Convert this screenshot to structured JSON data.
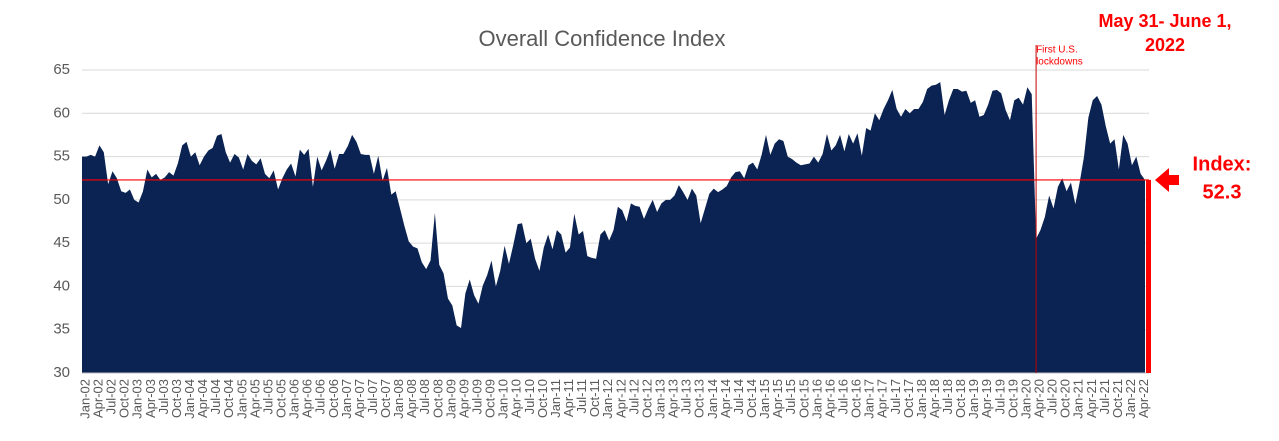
{
  "chart_data": {
    "type": "area",
    "title": "Overall Confidence Index",
    "color": "#0b2352",
    "grid": true,
    "ylim": [
      30,
      65
    ],
    "yticks": [
      30,
      35,
      40,
      45,
      50,
      55,
      60,
      65
    ],
    "categories": [
      "Jan-02",
      null,
      null,
      "Apr-02",
      null,
      null,
      "Jul-02",
      null,
      null,
      "Oct-02",
      null,
      null,
      "Jan-03",
      null,
      null,
      "Apr-03",
      null,
      null,
      "Jul-03",
      null,
      null,
      "Oct-03",
      null,
      null,
      "Jan-04",
      null,
      null,
      "Apr-04",
      null,
      null,
      "Jul-04",
      null,
      null,
      "Oct-04",
      null,
      null,
      "Jan-05",
      null,
      null,
      "Apr-05",
      null,
      null,
      "Jul-05",
      null,
      null,
      "Oct-05",
      null,
      null,
      "Jan-06",
      null,
      null,
      "Apr-06",
      null,
      null,
      "Jul-06",
      null,
      null,
      "Oct-06",
      null,
      null,
      "Jan-07",
      null,
      null,
      "Apr-07",
      null,
      null,
      "Jul-07",
      null,
      null,
      "Oct-07",
      null,
      null,
      "Jan-08",
      null,
      null,
      "Apr-08",
      null,
      null,
      "Jul-08",
      null,
      null,
      "Oct-08",
      null,
      null,
      "Jan-09",
      null,
      null,
      "Apr-09",
      null,
      null,
      "Jul-09",
      null,
      null,
      "Oct-09",
      null,
      null,
      "Jan-10",
      null,
      null,
      "Apr-10",
      null,
      null,
      "Jul-10",
      null,
      null,
      "Oct-10",
      null,
      null,
      "Jan-11",
      null,
      null,
      "Apr-11",
      null,
      null,
      "Jul-11",
      null,
      null,
      "Oct-11",
      null,
      null,
      "Jan-12",
      null,
      null,
      "Apr-12",
      null,
      null,
      "Jul-12",
      null,
      null,
      "Oct-12",
      null,
      null,
      "Jan-13",
      null,
      null,
      "Apr-13",
      null,
      null,
      "Jul-13",
      null,
      null,
      "Oct-13",
      null,
      null,
      "Jan-14",
      null,
      null,
      "Apr-14",
      null,
      null,
      "Jul-14",
      null,
      null,
      "Oct-14",
      null,
      null,
      "Jan-15",
      null,
      null,
      "Apr-15",
      null,
      null,
      "Jul-15",
      null,
      null,
      "Oct-15",
      null,
      null,
      "Jan-16",
      null,
      null,
      "Apr-16",
      null,
      null,
      "Jul-16",
      null,
      null,
      "Oct-16",
      null,
      null,
      "Jan-17",
      null,
      null,
      "Apr-17",
      null,
      null,
      "Jul-17",
      null,
      null,
      "Oct-17",
      null,
      null,
      "Jan-18",
      null,
      null,
      "Apr-18",
      null,
      null,
      "Jul-18",
      null,
      null,
      "Oct-18",
      null,
      null,
      "Jan-19",
      null,
      null,
      "Apr-19",
      null,
      null,
      "Jul-19",
      null,
      null,
      "Oct-19",
      null,
      null,
      "Jan-20",
      null,
      null,
      "Apr-20",
      null,
      null,
      "Jul-20",
      null,
      null,
      "Oct-20",
      null,
      null,
      "Jan-21",
      null,
      null,
      "Apr-21",
      null,
      null,
      "Jul-21",
      null,
      null,
      "Oct-21",
      null,
      null,
      "Jan-22",
      null,
      null,
      "Apr-22",
      null
    ],
    "values": [
      55,
      55,
      55.2,
      55,
      56.3,
      55.5,
      51.8,
      53.3,
      52.5,
      51,
      50.8,
      51.2,
      50,
      49.7,
      51,
      53.5,
      52.6,
      53,
      52.3,
      52.6,
      53.2,
      52.8,
      54.2,
      56.3,
      56.7,
      55,
      55.5,
      54,
      55,
      55.7,
      56,
      57.4,
      57.6,
      55.5,
      54.3,
      55.3,
      54.9,
      53.5,
      55.3,
      54.5,
      54.1,
      54.8,
      53,
      52.5,
      53.4,
      51.2,
      52.5,
      53.5,
      54.2,
      52.7,
      55.8,
      55.2,
      55.9,
      51.5,
      55,
      53.4,
      54.5,
      55.8,
      53.6,
      55.3,
      55.3,
      56.2,
      57.5,
      56.7,
      55.3,
      55.2,
      55.2,
      53,
      55.1,
      52.2,
      53.7,
      50.6,
      51,
      49,
      47,
      45.2,
      44.6,
      44.4,
      42.8,
      42,
      43,
      48.5,
      42.5,
      41.5,
      38.6,
      37.8,
      35.5,
      35.2,
      39.2,
      40.8,
      39,
      38,
      40.1,
      41.3,
      43,
      40,
      41.8,
      44.7,
      42.6,
      44.8,
      47.2,
      47.3,
      45,
      45.5,
      43.2,
      41.8,
      44.5,
      46,
      44.3,
      46.5,
      46,
      43.9,
      44.5,
      48.4,
      46,
      46.4,
      43.5,
      43.3,
      43.2,
      46,
      46.5,
      45.3,
      46.5,
      49.2,
      48.8,
      47.5,
      49.6,
      49.3,
      49.2,
      47.8,
      49,
      50,
      48.6,
      49.6,
      50,
      50,
      50.5,
      51.7,
      50.9,
      50,
      51.3,
      50.5,
      47.3,
      49,
      50.7,
      51.3,
      50.9,
      51.2,
      51.6,
      52.6,
      53.2,
      53.3,
      52.5,
      54,
      54.3,
      53.5,
      55.2,
      57.5,
      55.2,
      56.5,
      57,
      56.8,
      55,
      54.7,
      54.3,
      54,
      54.1,
      54.2,
      55,
      54.3,
      55.3,
      57.6,
      55.7,
      56.3,
      57.5,
      55.6,
      57.6,
      56.5,
      57.7,
      55.1,
      58.3,
      58,
      60,
      59.2,
      60.5,
      61.5,
      62.7,
      60.5,
      59.6,
      60.5,
      60,
      60.5,
      60.5,
      61.3,
      62.8,
      63.2,
      63.3,
      63.6,
      59.8,
      61.5,
      62.8,
      62.8,
      62.5,
      62.6,
      61.2,
      61.5,
      59.6,
      59.8,
      61,
      62.6,
      62.7,
      62.3,
      60.4,
      59.2,
      61.5,
      61.8,
      61,
      63,
      62.2,
      45.5,
      46.5,
      48,
      50.5,
      49,
      51.5,
      52.5,
      51,
      52,
      49.5,
      52,
      55,
      59.5,
      61.5,
      62,
      61,
      58.5,
      56.5,
      57,
      53.5,
      57.5,
      56.5,
      54,
      55,
      53,
      52.3
    ],
    "event": {
      "category": "Apr-20",
      "label": [
        "First U.S.",
        "lockdowns"
      ]
    },
    "date_note": [
      "May 31- June 1,",
      "2022"
    ],
    "index_label": "Index:",
    "index_value": 52.3,
    "annotation_color": "#ff0000"
  }
}
